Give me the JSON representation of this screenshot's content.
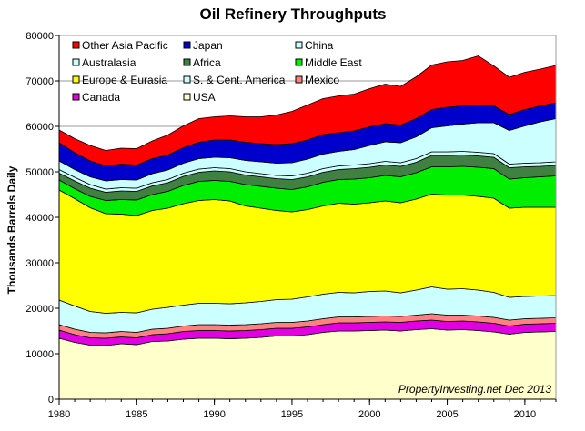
{
  "chart_data": {
    "type": "area",
    "stacked": true,
    "title": "Oil Refinery Throughputs",
    "ylabel": "Thousands Barrels Daily",
    "xlabel": "",
    "annotation": "PropertyInvesting.net  Dec 2013",
    "xlim": [
      1980,
      2012
    ],
    "ylim": [
      0,
      80000
    ],
    "x_ticks": [
      1980,
      1985,
      1990,
      1995,
      2000,
      2005,
      2010
    ],
    "x_tick_labels": [
      "1980",
      "1985",
      "1990",
      "1995",
      "2000",
      "2005",
      "2010"
    ],
    "y_ticks": [
      0,
      10000,
      20000,
      30000,
      40000,
      50000,
      60000,
      70000,
      80000
    ],
    "y_tick_labels": [
      "0",
      "10000",
      "20000",
      "30000",
      "40000",
      "50000",
      "60000",
      "70000",
      "80000"
    ],
    "grid": "horizontal",
    "legend_position": "top-left",
    "x": [
      1980,
      1981,
      1982,
      1983,
      1984,
      1985,
      1986,
      1987,
      1988,
      1989,
      1990,
      1991,
      1992,
      1993,
      1994,
      1995,
      1996,
      1997,
      1998,
      1999,
      2000,
      2001,
      2002,
      2003,
      2004,
      2005,
      2006,
      2007,
      2008,
      2009,
      2010,
      2011,
      2012
    ],
    "series": [
      {
        "name": "USA",
        "color": "#FFFFCC",
        "values": [
          13400,
          12500,
          11900,
          11800,
          12200,
          12000,
          12700,
          12800,
          13200,
          13400,
          13400,
          13300,
          13400,
          13600,
          13900,
          13900,
          14200,
          14700,
          15000,
          15000,
          15100,
          15200,
          15000,
          15300,
          15500,
          15200,
          15300,
          15100,
          14800,
          14300,
          14700,
          14800,
          14900
        ]
      },
      {
        "name": "Canada",
        "color": "#E000E0",
        "values": [
          1800,
          1700,
          1600,
          1600,
          1500,
          1500,
          1500,
          1600,
          1700,
          1700,
          1700,
          1700,
          1700,
          1700,
          1700,
          1700,
          1700,
          1700,
          1800,
          1800,
          1800,
          1800,
          1900,
          1900,
          1900,
          1900,
          1900,
          1900,
          1900,
          1800,
          1800,
          1800,
          1800
        ]
      },
      {
        "name": "Mexico",
        "color": "#FF8080",
        "values": [
          1200,
          1200,
          1200,
          1200,
          1200,
          1200,
          1200,
          1200,
          1200,
          1300,
          1300,
          1300,
          1300,
          1300,
          1300,
          1300,
          1300,
          1300,
          1300,
          1300,
          1300,
          1300,
          1300,
          1300,
          1400,
          1400,
          1300,
          1300,
          1300,
          1300,
          1200,
          1200,
          1200
        ]
      },
      {
        "name": "S. & Cent. America",
        "color": "#CCFFFF",
        "values": [
          5400,
          5100,
          4600,
          4300,
          4200,
          4300,
          4400,
          4600,
          4600,
          4700,
          4700,
          4700,
          4800,
          4900,
          5000,
          5100,
          5300,
          5400,
          5400,
          5300,
          5500,
          5500,
          5200,
          5500,
          5900,
          5700,
          5800,
          5700,
          5500,
          5000,
          4900,
          4900,
          4900
        ]
      },
      {
        "name": "Europe & Eurasia",
        "color": "#FFFF00",
        "values": [
          24200,
          23600,
          22800,
          21900,
          21600,
          21400,
          21700,
          21800,
          22300,
          22600,
          22800,
          22600,
          21300,
          20500,
          19600,
          19200,
          19200,
          19400,
          19600,
          19500,
          19500,
          19800,
          19800,
          20000,
          20400,
          20700,
          20600,
          20600,
          20700,
          19600,
          19600,
          19500,
          19400
        ]
      },
      {
        "name": "Middle East",
        "color": "#00EE00",
        "values": [
          2200,
          2200,
          2500,
          2900,
          3200,
          3400,
          3500,
          3700,
          4000,
          4200,
          4200,
          4300,
          4700,
          4800,
          4900,
          4900,
          5000,
          5200,
          5200,
          5500,
          5500,
          5600,
          5700,
          5800,
          6000,
          6200,
          6300,
          6400,
          6500,
          6400,
          6500,
          6700,
          6900
        ]
      },
      {
        "name": "Africa",
        "color": "#408040",
        "values": [
          1500,
          1700,
          1800,
          1800,
          1900,
          1900,
          1900,
          1900,
          2000,
          2000,
          2100,
          2100,
          2100,
          2100,
          2100,
          2200,
          2200,
          2200,
          2200,
          2300,
          2300,
          2300,
          2300,
          2300,
          2500,
          2500,
          2500,
          2500,
          2500,
          2500,
          2400,
          2300,
          2300
        ]
      },
      {
        "name": "Australasia",
        "color": "#CCFFFF",
        "values": [
          800,
          800,
          800,
          700,
          700,
          700,
          700,
          700,
          700,
          700,
          700,
          700,
          700,
          700,
          700,
          800,
          800,
          800,
          800,
          800,
          800,
          800,
          800,
          800,
          800,
          800,
          800,
          800,
          800,
          800,
          800,
          800,
          800
        ]
      },
      {
        "name": "China",
        "color": "#CCFFFF",
        "values": [
          1900,
          1700,
          1700,
          1800,
          1800,
          1800,
          2000,
          2100,
          2200,
          2300,
          2300,
          2400,
          2500,
          2600,
          2700,
          2900,
          3100,
          3200,
          3200,
          3400,
          4000,
          4300,
          4400,
          4800,
          5300,
          5700,
          6000,
          6500,
          6800,
          7400,
          8200,
          9000,
          9500
        ]
      },
      {
        "name": "Japan",
        "color": "#0000CC",
        "values": [
          4000,
          3700,
          3500,
          3300,
          3400,
          3300,
          3300,
          3300,
          3400,
          3600,
          3800,
          3900,
          4000,
          4000,
          4100,
          4200,
          4200,
          4300,
          4100,
          4100,
          4100,
          4000,
          3900,
          4000,
          4000,
          4100,
          4000,
          3900,
          3700,
          3500,
          3600,
          3500,
          3500
        ]
      },
      {
        "name": "Other Asia Pacific",
        "color": "#FF0000",
        "values": [
          2800,
          3100,
          3400,
          3400,
          3500,
          3600,
          3900,
          4400,
          4800,
          5200,
          5100,
          5300,
          5600,
          5900,
          6500,
          7100,
          7700,
          7900,
          8100,
          8100,
          8400,
          8700,
          8500,
          9200,
          9800,
          10000,
          10000,
          10800,
          8800,
          8200,
          8200,
          8100,
          8200
        ]
      }
    ],
    "legend_order": [
      "Other Asia Pacific",
      "Japan",
      "China",
      "Australasia",
      "Africa",
      "Middle East",
      "Europe & Eurasia",
      "S. & Cent. America",
      "Mexico",
      "Canada",
      "USA"
    ]
  }
}
